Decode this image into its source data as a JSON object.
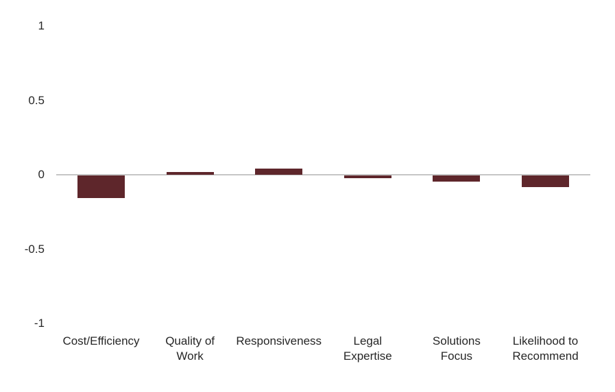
{
  "chart_data": {
    "type": "bar",
    "title": "",
    "xlabel": "",
    "ylabel": "",
    "categories": [
      "Cost/Efficiency",
      "Quality of Work",
      "Responsiveness",
      "Legal Expertise",
      "Solutions Focus",
      "Likelihood to Recommend"
    ],
    "category_lines": [
      [
        "Cost/Efficiency"
      ],
      [
        "Quality of",
        "Work"
      ],
      [
        "Responsiveness"
      ],
      [
        "Legal",
        "Expertise"
      ],
      [
        "Solutions",
        "Focus"
      ],
      [
        "Likelihood to",
        "Recommend"
      ]
    ],
    "values": [
      -0.15,
      0.02,
      0.04,
      -0.02,
      -0.04,
      -0.08
    ],
    "ylim": [
      -1,
      1
    ],
    "yticks": [
      1,
      0.5,
      0,
      -0.5,
      -1
    ],
    "ytick_labels": [
      "1",
      "0.5",
      "0",
      "-0.5",
      "-1"
    ],
    "grid": "off",
    "legend": "none",
    "colors": {
      "bar": "#5E262B",
      "axis_line": "#C6C6C6",
      "text": "#262626",
      "background": "#FFFFFF"
    }
  }
}
